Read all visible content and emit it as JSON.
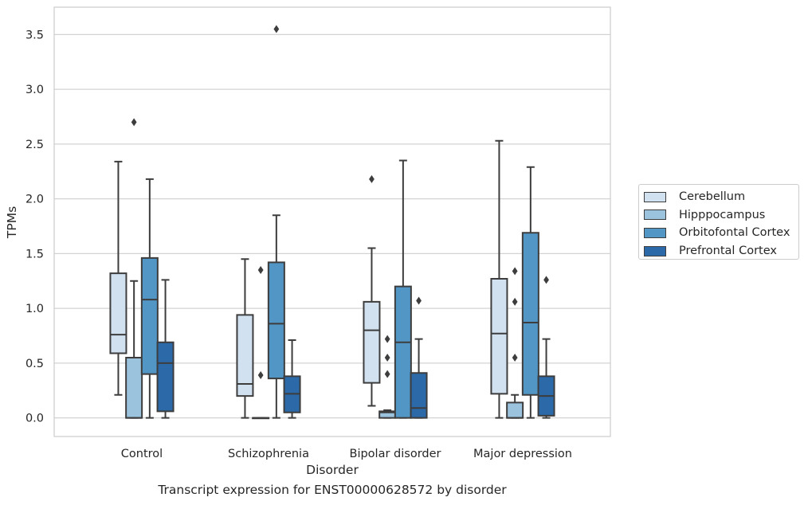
{
  "chart_data": {
    "type": "boxplot",
    "title": "",
    "xlabel": "Disorder",
    "ylabel": "TPMs",
    "ylim": [
      -0.17,
      3.75
    ],
    "yticks": [
      0.0,
      0.5,
      1.0,
      1.5,
      2.0,
      2.5,
      3.0,
      3.5
    ],
    "ytick_labels": [
      "0.0",
      "0.5",
      "1.0",
      "1.5",
      "2.0",
      "2.5",
      "3.0",
      "3.5"
    ],
    "categories": [
      "Control",
      "Schizophrenia",
      "Bipolar disorder",
      "Major depression"
    ],
    "grid": "horizontal",
    "legend_position": "right",
    "series": [
      {
        "name": "Cerebellum",
        "color": "#d2e1f0",
        "boxes": [
          {
            "whislo": 0.21,
            "q1": 0.59,
            "med": 0.76,
            "q3": 1.32,
            "whishi": 2.34,
            "fliers": []
          },
          {
            "whislo": 0.0,
            "q1": 0.2,
            "med": 0.31,
            "q3": 0.94,
            "whishi": 1.45,
            "fliers": []
          },
          {
            "whislo": 0.11,
            "q1": 0.32,
            "med": 0.8,
            "q3": 1.06,
            "whishi": 1.55,
            "fliers": [
              2.18
            ]
          },
          {
            "whislo": 0.0,
            "q1": 0.22,
            "med": 0.77,
            "q3": 1.27,
            "whishi": 2.53,
            "fliers": []
          }
        ]
      },
      {
        "name": "Hipppocampus",
        "color": "#9cc3de",
        "boxes": [
          {
            "whislo": 0.0,
            "q1": 0.0,
            "med": 0.0,
            "q3": 0.55,
            "whishi": 1.25,
            "fliers": [
              2.7
            ]
          },
          {
            "whislo": 0.0,
            "q1": 0.0,
            "med": 0.0,
            "q3": 0.0,
            "whishi": 0.0,
            "fliers": [
              0.39,
              1.35
            ]
          },
          {
            "whislo": 0.0,
            "q1": 0.0,
            "med": 0.05,
            "q3": 0.06,
            "whishi": 0.07,
            "fliers": [
              0.4,
              0.55,
              0.72
            ]
          },
          {
            "whislo": 0.0,
            "q1": 0.0,
            "med": 0.0,
            "q3": 0.14,
            "whishi": 0.21,
            "fliers": [
              0.55,
              1.06,
              1.34
            ]
          }
        ]
      },
      {
        "name": "Orbitofontal Cortex",
        "color": "#5296c6",
        "boxes": [
          {
            "whislo": 0.0,
            "q1": 0.4,
            "med": 1.08,
            "q3": 1.46,
            "whishi": 2.18,
            "fliers": []
          },
          {
            "whislo": 0.0,
            "q1": 0.36,
            "med": 0.86,
            "q3": 1.42,
            "whishi": 1.85,
            "fliers": [
              3.55
            ]
          },
          {
            "whislo": 0.0,
            "q1": 0.0,
            "med": 0.69,
            "q3": 1.2,
            "whishi": 2.35,
            "fliers": []
          },
          {
            "whislo": 0.0,
            "q1": 0.21,
            "med": 0.87,
            "q3": 1.69,
            "whishi": 2.29,
            "fliers": []
          }
        ]
      },
      {
        "name": "Prefrontal Cortex",
        "color": "#2b69a8",
        "boxes": [
          {
            "whislo": 0.0,
            "q1": 0.06,
            "med": 0.5,
            "q3": 0.69,
            "whishi": 1.26,
            "fliers": []
          },
          {
            "whislo": 0.0,
            "q1": 0.05,
            "med": 0.22,
            "q3": 0.38,
            "whishi": 0.71,
            "fliers": []
          },
          {
            "whislo": 0.0,
            "q1": 0.0,
            "med": 0.09,
            "q3": 0.41,
            "whishi": 0.72,
            "fliers": [
              1.07
            ]
          },
          {
            "whislo": 0.0,
            "q1": 0.02,
            "med": 0.2,
            "q3": 0.38,
            "whishi": 0.72,
            "fliers": [
              1.26
            ]
          }
        ]
      }
    ]
  },
  "caption": "Transcript expression for ENST00000628572 by disorder"
}
